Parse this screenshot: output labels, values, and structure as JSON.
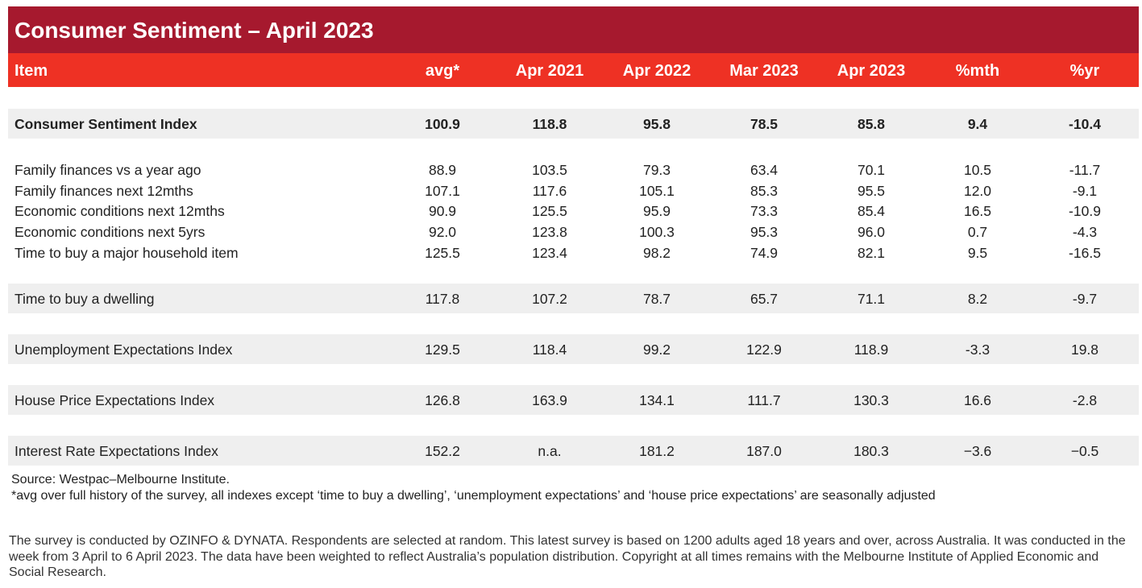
{
  "header": {
    "title": "Consumer Sentiment – April 2023"
  },
  "table": {
    "columns": [
      "Item",
      "avg*",
      "Apr 2021",
      "Apr 2022",
      "Mar 2023",
      "Apr 2023",
      "%mth",
      "%yr"
    ],
    "groups": [
      [
        [
          "Consumer Sentiment Index",
          "100.9",
          "118.8",
          "95.8",
          "78.5",
          "85.8",
          "9.4",
          "-10.4"
        ]
      ],
      [
        [
          "Family finances vs a year ago",
          "88.9",
          "103.5",
          "79.3",
          "63.4",
          "70.1",
          "10.5",
          "-11.7"
        ],
        [
          "Family finances next 12mths",
          "107.1",
          "117.6",
          "105.1",
          "85.3",
          "95.5",
          "12.0",
          "-9.1"
        ],
        [
          "Economic conditions next 12mths",
          "90.9",
          "125.5",
          "95.9",
          "73.3",
          "85.4",
          "16.5",
          "-10.9"
        ],
        [
          "Economic conditions next 5yrs",
          "92.0",
          "123.8",
          "100.3",
          "95.3",
          "96.0",
          "0.7",
          "-4.3"
        ],
        [
          "Time to buy a major household item",
          "125.5",
          "123.4",
          "98.2",
          "74.9",
          "82.1",
          "9.5",
          "-16.5"
        ]
      ],
      [
        [
          "Time to buy a dwelling",
          "117.8",
          "107.2",
          "78.7",
          "65.7",
          "71.1",
          "8.2",
          "-9.7"
        ]
      ],
      [
        [
          "Unemployment Expectations Index",
          "129.5",
          "118.4",
          "99.2",
          "122.9",
          "118.9",
          "-3.3",
          "19.8"
        ]
      ],
      [
        [
          "House Price Expectations Index",
          "126.8",
          "163.9",
          "134.1",
          "111.7",
          "130.3",
          "16.6",
          "-2.8"
        ]
      ],
      [
        [
          "Interest Rate Expectations Index",
          "152.2",
          "n.a.",
          "181.2",
          "187.0",
          "180.3",
          "−3.6",
          "−0.5"
        ]
      ]
    ]
  },
  "notes": {
    "source": "Source: Westpac–Melbourne Institute.",
    "footnote": "*avg over full history of the survey, all indexes except ‘time to buy a dwelling’, ‘unemployment expectations’ and ‘house price expectations’ are seasonally adjusted",
    "methodology": "The survey is conducted by OZINFO & DYNATA. Respondents are selected at random. This latest survey is based on 1200 adults aged 18 years and over, across Australia. It was conducted in the week from 3 April to 6 April 2023. The data have been weighted to reflect Australia’s population distribution. Copyright at all times remains with the Melbourne Institute of Applied Economic and Social Research."
  }
}
